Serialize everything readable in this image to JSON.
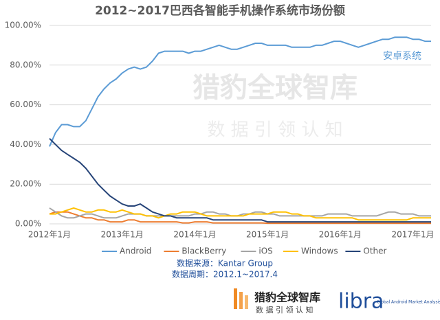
{
  "chart_data": {
    "type": "line",
    "title": "2012~2017巴西各智能手机操作系统市场份额",
    "annotation": "安卓系统",
    "source": "数据来源：Kantar Group",
    "period": "数据周期：2012.1~2017.4",
    "watermark": {
      "title": "猎豹全球智库",
      "subtitle": "数 据 引 领 认 知"
    },
    "footer": {
      "brand": "猎豹全球智库",
      "slogan": "数 据 引 领 认 知",
      "logo": "libra",
      "logo_caption": "Global Android Market Analysis Platform"
    },
    "categories": [
      "2012年1月",
      null,
      null,
      null,
      null,
      null,
      null,
      null,
      null,
      null,
      null,
      null,
      "2013年1月",
      null,
      null,
      null,
      null,
      null,
      null,
      null,
      null,
      null,
      null,
      null,
      "2014年1月",
      null,
      null,
      null,
      null,
      null,
      null,
      null,
      null,
      null,
      null,
      null,
      "2015年1月",
      null,
      null,
      null,
      null,
      null,
      null,
      null,
      null,
      null,
      null,
      null,
      "2016年1月",
      null,
      null,
      null,
      null,
      null,
      null,
      null,
      null,
      null,
      null,
      null,
      "2017年1月",
      null,
      null,
      null
    ],
    "series": [
      {
        "name": "Android",
        "color": "#5b9bd5",
        "values": [
          39,
          46,
          50,
          50,
          49,
          49,
          52,
          58,
          64,
          68,
          71,
          73,
          76,
          78,
          79,
          78,
          79,
          82,
          86,
          87,
          87,
          87,
          87,
          86,
          87,
          87,
          88,
          89,
          90,
          89,
          88,
          88,
          89,
          90,
          91,
          91,
          90,
          90,
          90,
          90,
          89,
          89,
          89,
          89,
          90,
          90,
          91,
          92,
          92,
          91,
          90,
          89,
          90,
          91,
          92,
          93,
          93,
          94,
          94,
          94,
          93,
          93,
          92,
          92
        ]
      },
      {
        "name": "BlackBerry",
        "color": "#ed7d31",
        "values": [
          5,
          6,
          6,
          6,
          5,
          4,
          3,
          3,
          2,
          2,
          1,
          1,
          1,
          2,
          2,
          1,
          1,
          1,
          1,
          1,
          1,
          1,
          0.5,
          0.5,
          1,
          1,
          1,
          0.5,
          0.5,
          0.5,
          0.5,
          0.5,
          0.5,
          0.5,
          0.5,
          0.5,
          0.3,
          0.3,
          0.3,
          0.3,
          0.3,
          0.3,
          0.3,
          0.3,
          0.3,
          0.3,
          0.3,
          0.3,
          0.3,
          0.3,
          0.3,
          0.3,
          0.3,
          0.3,
          0.3,
          0.3,
          0.3,
          0.3,
          0.3,
          0.3,
          0.3,
          0.3,
          0.3,
          0.3
        ]
      },
      {
        "name": "iOS",
        "color": "#a5a5a5",
        "values": [
          8,
          6,
          4,
          3,
          3,
          4,
          5,
          5,
          4,
          3,
          3,
          3,
          4,
          5,
          5,
          5,
          4,
          4,
          4,
          4,
          4,
          4,
          4,
          4,
          5,
          5,
          6,
          6,
          5,
          5,
          4,
          4,
          5,
          5,
          6,
          6,
          5,
          5,
          4,
          4,
          4,
          4,
          4,
          4,
          4,
          4,
          5,
          5,
          5,
          5,
          4,
          4,
          4,
          4,
          4,
          5,
          6,
          6,
          5,
          5,
          5,
          4,
          4,
          4
        ]
      },
      {
        "name": "Windows",
        "color": "#ffc000",
        "values": [
          5,
          5,
          6,
          7,
          8,
          7,
          6,
          6,
          7,
          7,
          6,
          6,
          7,
          6,
          5,
          5,
          4,
          4,
          3,
          4,
          5,
          5,
          6,
          6,
          6,
          5,
          4,
          4,
          4,
          4,
          4,
          4,
          4,
          5,
          5,
          5,
          5,
          6,
          6,
          6,
          5,
          5,
          4,
          4,
          3,
          3,
          3,
          3,
          3,
          3,
          3,
          2,
          2,
          2,
          2,
          2,
          2,
          2,
          2,
          2,
          3,
          3,
          3,
          3
        ]
      },
      {
        "name": "Other",
        "color": "#264478",
        "values": [
          43,
          40,
          37,
          35,
          33,
          31,
          28,
          24,
          20,
          17,
          14,
          12,
          10,
          9,
          9,
          10,
          8,
          6,
          5,
          4,
          4,
          3,
          3,
          3,
          3,
          3,
          3,
          2,
          2,
          2,
          2,
          2,
          2,
          2,
          2,
          2,
          1,
          1,
          1,
          1,
          1,
          1,
          1,
          1,
          1,
          1,
          1,
          1,
          1,
          1,
          1,
          1,
          1,
          1,
          1,
          1,
          1,
          1,
          1,
          1,
          1,
          1,
          1,
          1
        ]
      }
    ],
    "ylim": [
      0,
      100
    ],
    "yticks": [
      {
        "value": 0,
        "label": "0.00%"
      },
      {
        "value": 20,
        "label": "20.00%"
      },
      {
        "value": 40,
        "label": "40.00%"
      },
      {
        "value": 60,
        "label": "60.00%"
      },
      {
        "value": 80,
        "label": "80.00%"
      },
      {
        "value": 100,
        "label": "100.00%"
      }
    ],
    "legend": "bottom"
  }
}
